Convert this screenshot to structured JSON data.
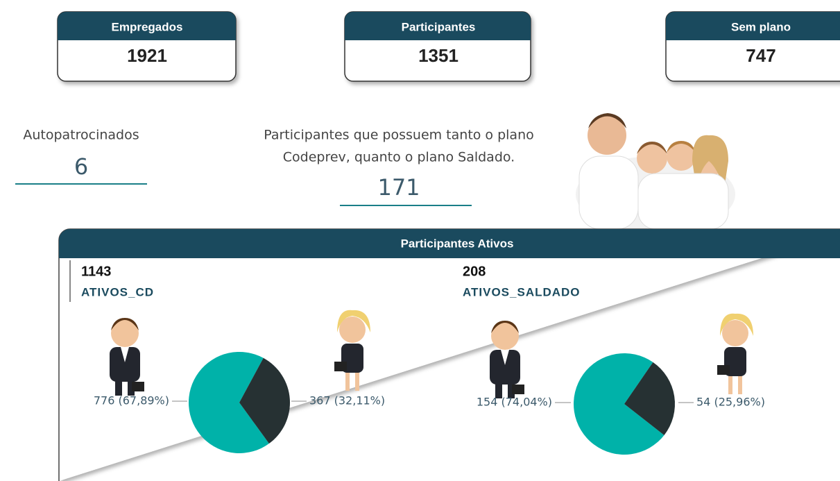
{
  "cards": [
    {
      "label": "Empregados",
      "value": 1921
    },
    {
      "label": "Participantes",
      "value": 1351
    },
    {
      "label": "Sem plano",
      "value": 747
    }
  ],
  "autopatrocinados": {
    "label": "Autopatrocinados",
    "value": 6
  },
  "ambos": {
    "text_lines": [
      "Participantes que possuem tanto o plano",
      "Codeprev, quanto o plano Saldado."
    ],
    "value": 171
  },
  "panel": {
    "title": "Participantes Ativos"
  },
  "chart_data": [
    {
      "type": "pie",
      "title": "ATIVOS_CD",
      "total": 1143,
      "values": [
        776,
        367
      ],
      "value_labels": [
        "776 (67,89%)",
        "367 (32,11%)"
      ],
      "colors": [
        "#00b2a9",
        "#263133"
      ]
    },
    {
      "type": "pie",
      "title": "ATIVOS_SALDADO",
      "total": 208,
      "values": [
        154,
        54
      ],
      "value_labels": [
        "154 (74,04%)",
        "54 (25,96%)"
      ],
      "colors": [
        "#00b2a9",
        "#263133"
      ]
    }
  ]
}
